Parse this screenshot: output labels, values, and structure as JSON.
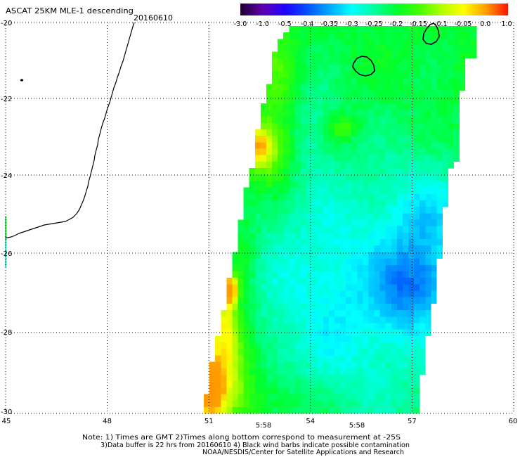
{
  "header": {
    "title": "ASCAT 25KM MLE-1 descending",
    "date": "20160610"
  },
  "colorbar": {
    "labels": [
      "-3.0",
      "-1.0",
      "-0.5",
      "-0.4",
      "-0.35",
      "-0.3",
      "-0.25",
      "-0.2",
      "-0.15",
      "-0.1",
      "-0.05",
      "0.0",
      "1.0"
    ],
    "colors": [
      "#1e0030",
      "#6000b0",
      "#2000ff",
      "#0050ff",
      "#00a8ff",
      "#00ffff",
      "#00ffa0",
      "#00ff30",
      "#40ff00",
      "#b0ff00",
      "#ffff00",
      "#ffa000",
      "#ff1000"
    ]
  },
  "axes": {
    "lon_labels": [
      "45",
      "48",
      "51",
      "54",
      "57",
      "60"
    ],
    "lat_labels": [
      "-20",
      "-22",
      "-24",
      "-26",
      "-28",
      "-30"
    ]
  },
  "time_labels": [
    "5:58",
    "5:58"
  ],
  "colors": {
    "time_label": "#cc2200"
  },
  "notes": [
    "Note: 1) Times are GMT 2)Times along bottom correspond to measurement at -25S",
    "3)Data buffer is 22 hrs from 20160610 4) Black wind barbs indicate possible contamination",
    "NOAA/NESDIS/Center for Satellite Applications and Research"
  ]
}
